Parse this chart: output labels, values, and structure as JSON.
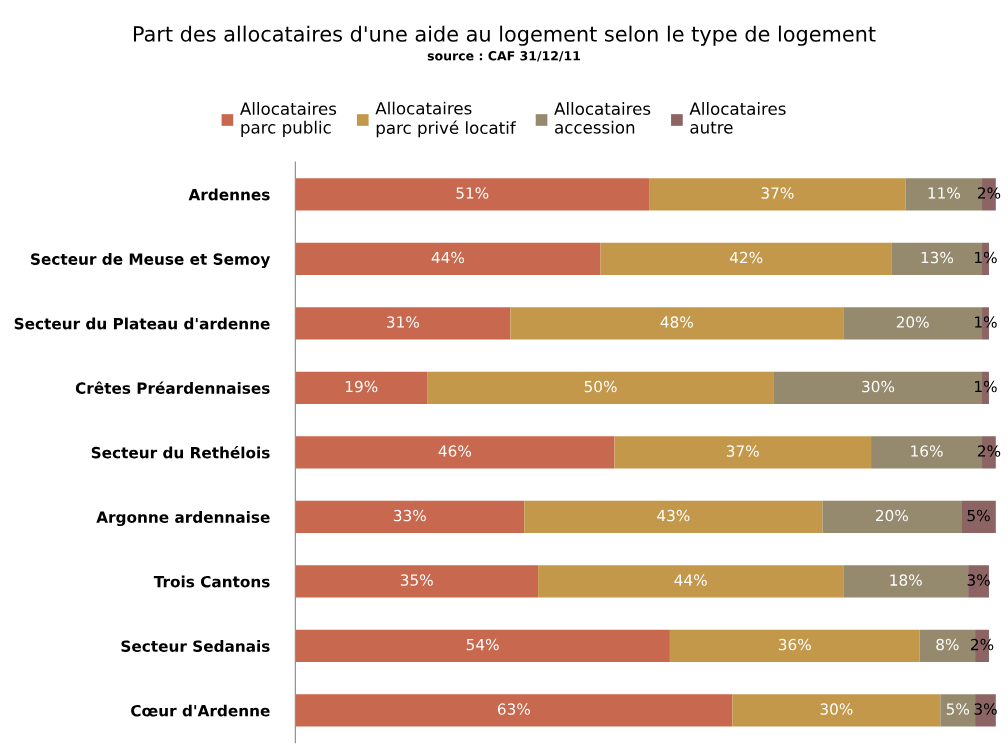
{
  "chart_data": {
    "type": "bar",
    "orientation": "horizontal",
    "stacked": true,
    "title": "Part des allocataires d'une aide au logement selon le type de logement",
    "subtitle": "source : CAF 31/12/11",
    "categories": [
      "Ardennes",
      "Secteur de Meuse et Semoy",
      "Secteur du Plateau d'ardenne",
      "Crêtes Préardennaises",
      "Secteur du Rethélois",
      "Argonne ardennaise",
      "Trois Cantons",
      "Secteur Sedanais",
      "Cœur d'Ardenne"
    ],
    "series": [
      {
        "name": "Allocataires\nparc public",
        "color": "#c8694f",
        "values": [
          51,
          44,
          31,
          19,
          46,
          33,
          35,
          54,
          63
        ],
        "value_labels": [
          "51%",
          "44%",
          "31%",
          "19%",
          "46%",
          "33%",
          "35%",
          "54%",
          "63%"
        ]
      },
      {
        "name": "Allocataires\nparc privé locatif",
        "color": "#c4984a",
        "values": [
          37,
          42,
          48,
          50,
          37,
          43,
          44,
          36,
          30
        ],
        "value_labels": [
          "37%",
          "42%",
          "48%",
          "50%",
          "37%",
          "43%",
          "44%",
          "36%",
          "30%"
        ]
      },
      {
        "name": "Allocataires\naccession",
        "color": "#968a6e",
        "values": [
          11,
          13,
          20,
          30,
          16,
          20,
          18,
          8,
          5
        ],
        "value_labels": [
          "11%",
          "13%",
          "20%",
          "30%",
          "16%",
          "20%",
          "18%",
          "8%",
          "5%"
        ]
      },
      {
        "name": "Allocataires\nautre",
        "color": "#8c6464",
        "values": [
          2,
          1,
          1,
          1,
          2,
          5,
          3,
          2,
          3
        ],
        "value_labels": [
          "2%",
          "1%",
          "1%",
          "1%",
          "2%",
          "5%",
          "3%",
          "2%",
          "3%"
        ]
      }
    ],
    "legend": "top"
  }
}
